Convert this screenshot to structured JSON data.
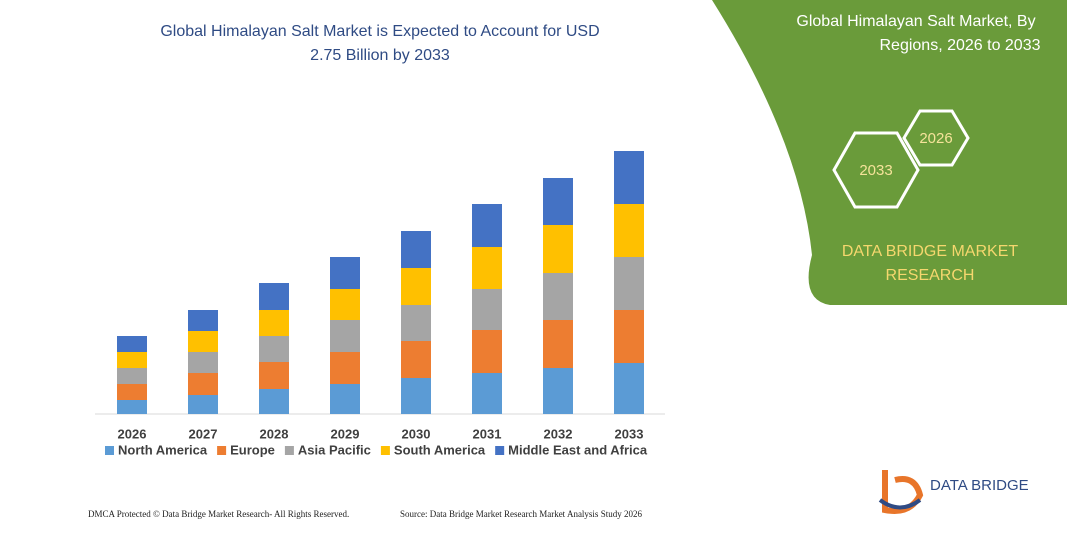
{
  "chart_data": {
    "type": "stacked_bar",
    "title_lines": [
      "Global Himalayan Salt Market is Expected to Account for USD",
      "2.75 Billion by 2033"
    ],
    "categories": [
      "2026",
      "2027",
      "2028",
      "2029",
      "2030",
      "2031",
      "2032",
      "2033"
    ],
    "series": [
      {
        "name": "North America",
        "color": "#5b9bd5",
        "values": [
          14,
          19,
          25,
          30,
          36,
          41,
          46,
          51
        ]
      },
      {
        "name": "Europe",
        "color": "#ed7d31",
        "values": [
          16,
          22,
          27,
          32,
          37,
          43,
          48,
          53
        ]
      },
      {
        "name": "Asia Pacific",
        "color": "#a5a5a5",
        "values": [
          16,
          21,
          26,
          32,
          36,
          41,
          47,
          53
        ]
      },
      {
        "name": "South America",
        "color": "#ffc000",
        "values": [
          16,
          21,
          26,
          31,
          37,
          42,
          48,
          53
        ]
      },
      {
        "name": "Middle East and Africa",
        "color": "#4472c4",
        "values": [
          16,
          21,
          27,
          32,
          37,
          43,
          47,
          53
        ]
      }
    ]
  },
  "panel": {
    "title_lines": [
      "Global Himalayan Salt Market, By",
      "Regions, 2026 to 2033"
    ],
    "hex_large": "2033",
    "hex_small": "2026",
    "brand_lines": [
      "DATA BRIDGE MARKET",
      "RESEARCH"
    ]
  },
  "logo": {
    "name": "DATA BRIDGE"
  },
  "footer": {
    "left": "DMCA Protected © Data Bridge Market Research-  All Rights Reserved.",
    "right": "Source: Data Bridge Market Research  Market Analysis Study 2026"
  }
}
